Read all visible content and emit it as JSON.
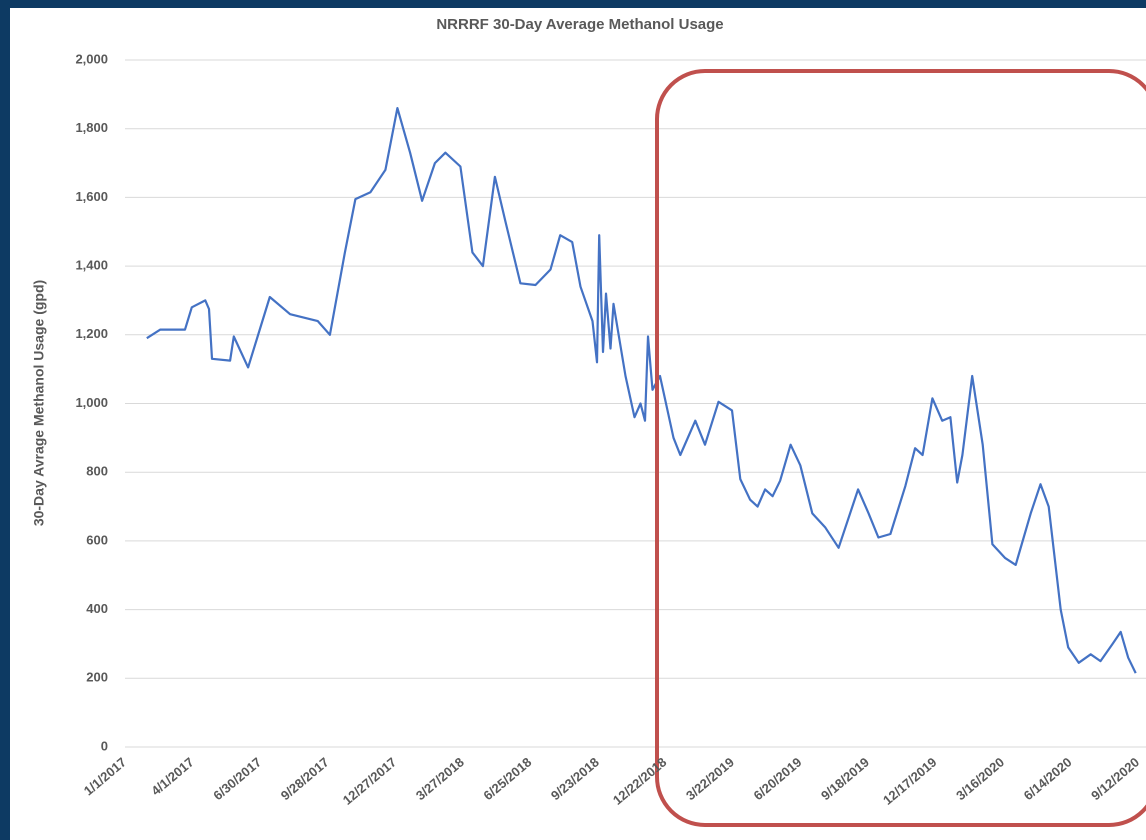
{
  "chart_data": {
    "type": "line",
    "title": "NRRRF 30-Day Average Methanol Usage",
    "y_label": "30-Day Avrage Methanol Usage (gpd)",
    "x": [
      "1/30/2017",
      "2/17/2017",
      "3/22/2017",
      "3/31/2017",
      "4/18/2017",
      "4/23/2017",
      "4/27/2017",
      "5/21/2017",
      "5/26/2017",
      "6/14/2017",
      "7/13/2017",
      "8/9/2017",
      "9/15/2017",
      "10/1/2017",
      "10/21/2017",
      "11/4/2017",
      "11/24/2017",
      "12/14/2017",
      "12/30/2017",
      "1/16/2018",
      "2/1/2018",
      "2/18/2018",
      "3/4/2018",
      "3/24/2018",
      "4/9/2018",
      "4/23/2018",
      "5/9/2018",
      "5/23/2018",
      "6/12/2018",
      "7/2/2018",
      "7/22/2018",
      "8/4/2018",
      "8/20/2018",
      "8/31/2018",
      "9/16/2018",
      "9/22/2018",
      "9/25/2018",
      "9/30/2018",
      "10/4/2018",
      "10/10/2018",
      "10/14/2018",
      "10/30/2018",
      "11/11/2018",
      "11/19/2018",
      "11/25/2018",
      "11/29/2018",
      "12/5/2018",
      "12/15/2018",
      "1/2/2019",
      "1/11/2019",
      "1/31/2019",
      "2/13/2019",
      "3/3/2019",
      "3/21/2019",
      "4/1/2019",
      "4/14/2019",
      "4/24/2019",
      "5/4/2019",
      "5/14/2019",
      "5/24/2019",
      "6/7/2019",
      "6/20/2019",
      "7/6/2019",
      "7/23/2019",
      "8/10/2019",
      "9/5/2019",
      "9/19/2019",
      "10/2/2019",
      "10/18/2019",
      "11/7/2019",
      "11/20/2019",
      "11/30/2019",
      "12/13/2019",
      "12/26/2019",
      "1/6/2020",
      "1/15/2020",
      "1/22/2020",
      "2/4/2020",
      "2/18/2020",
      "3/2/2020",
      "3/19/2020",
      "4/2/2020",
      "4/22/2020",
      "5/5/2020",
      "5/16/2020",
      "6/1/2020",
      "6/11/2020",
      "6/25/2020",
      "7/11/2020",
      "7/24/2020",
      "8/9/2020",
      "8/20/2020",
      "8/30/2020",
      "9/9/2020"
    ],
    "series": [
      {
        "name": "30-Day Average Methanol Usage",
        "color": "#4472c4",
        "values": [
          1190,
          1215,
          1215,
          1280,
          1300,
          1275,
          1130,
          1125,
          1195,
          1105,
          1310,
          1260,
          1240,
          1200,
          1440,
          1595,
          1615,
          1680,
          1860,
          1730,
          1590,
          1700,
          1730,
          1690,
          1440,
          1400,
          1660,
          1530,
          1350,
          1345,
          1390,
          1490,
          1470,
          1340,
          1240,
          1120,
          1490,
          1150,
          1320,
          1160,
          1290,
          1080,
          960,
          1000,
          950,
          1195,
          1040,
          1080,
          900,
          850,
          950,
          880,
          1005,
          980,
          780,
          720,
          700,
          750,
          730,
          775,
          880,
          820,
          680,
          640,
          580,
          750,
          680,
          610,
          620,
          760,
          870,
          850,
          1015,
          950,
          960,
          770,
          850,
          1080,
          880,
          590,
          550,
          530,
          680,
          765,
          700,
          400,
          290,
          245,
          270,
          250,
          300,
          335,
          260,
          215
        ]
      }
    ],
    "xlim": [
      "1/1/2017",
      "9/12/2020"
    ],
    "xticks": [
      "1/1/2017",
      "4/1/2017",
      "6/30/2017",
      "9/28/2017",
      "12/27/2017",
      "3/27/2018",
      "6/25/2018",
      "9/23/2018",
      "12/22/2018",
      "3/22/2019",
      "6/20/2019",
      "9/18/2019",
      "12/17/2019",
      "3/16/2020",
      "6/14/2020",
      "9/12/2020"
    ],
    "ylim": [
      0,
      2000
    ],
    "yticks": [
      0,
      200,
      400,
      600,
      800,
      {
        "value": 1000,
        "label": "1,000"
      },
      {
        "value": 1200,
        "label": "1,200"
      },
      {
        "value": 1400,
        "label": "1,400"
      },
      {
        "value": 1600,
        "label": "1,600"
      },
      {
        "value": 1800,
        "label": "1,800"
      },
      {
        "value": 2000,
        "label": "2,000"
      }
    ],
    "grid": true
  }
}
